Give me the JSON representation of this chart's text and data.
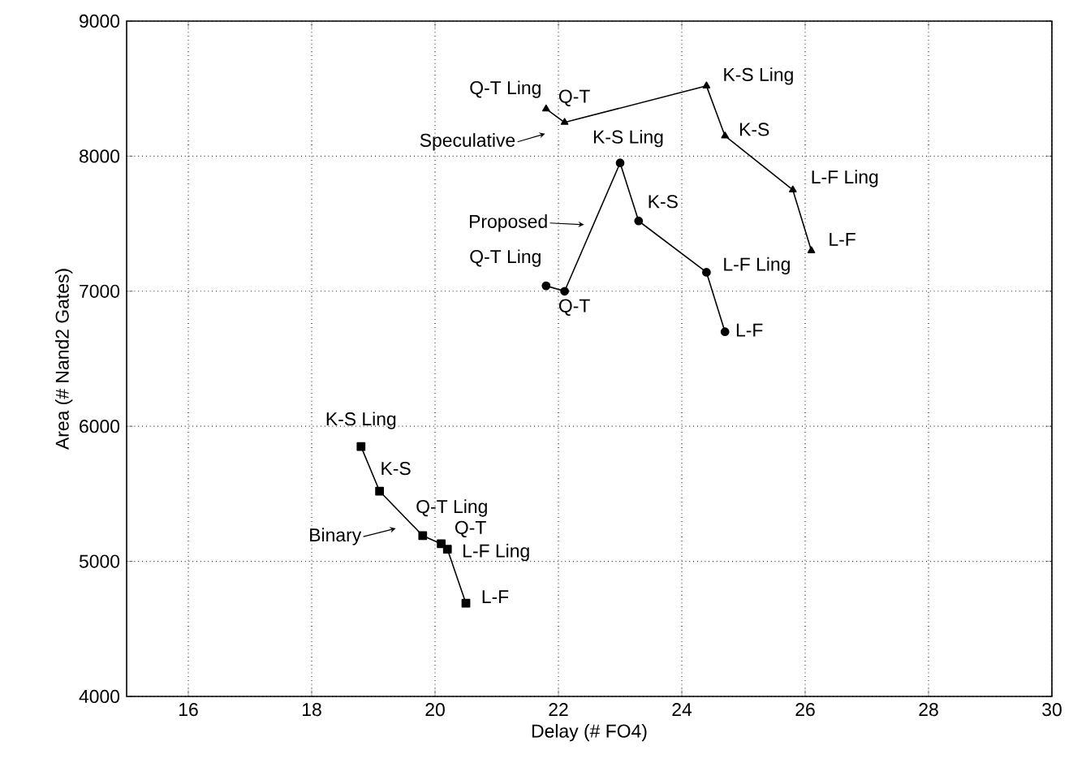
{
  "chart_data": {
    "type": "line",
    "xlabel": "Delay (# FO4)",
    "ylabel": "Area (# Nand2 Gates)",
    "xlim": [
      15,
      30
    ],
    "ylim": [
      4000,
      9000
    ],
    "xticks": [
      16,
      18,
      20,
      22,
      24,
      26,
      28,
      30
    ],
    "yticks": [
      4000,
      5000,
      6000,
      7000,
      8000,
      9000
    ],
    "grid": true,
    "line_style": "solid",
    "legend": "left",
    "series": [
      {
        "name": "Binary",
        "color": "#000000",
        "marker": "square",
        "x": [
          18.8,
          19.1,
          19.8,
          20.1,
          20.2,
          20.5
        ],
        "values": [
          5850,
          5520,
          5190,
          5130,
          5090,
          4690
        ]
      },
      {
        "name": "Proposed",
        "color": "#000000",
        "marker": "circle",
        "x": [
          21.8,
          22.1,
          23.0,
          23.3,
          24.4,
          24.7
        ],
        "values": [
          7040,
          7000,
          7950,
          7520,
          7140,
          6700
        ]
      },
      {
        "name": "Speculative",
        "color": "#000000",
        "marker": "triangle",
        "x": [
          21.8,
          22.1,
          24.4,
          24.7,
          25.8,
          26.1
        ],
        "values": [
          8350,
          8250,
          8520,
          8150,
          7750,
          7300
        ]
      }
    ],
    "annotations": [
      {
        "text": "K-S Ling",
        "x": 18.8,
        "y": 5850
      },
      {
        "text": "K-S",
        "x": 19.1,
        "y": 5520
      },
      {
        "text": "Q-T Ling",
        "x": 19.8,
        "y": 5190
      },
      {
        "text": "Q-T",
        "x": 20.1,
        "y": 5130
      },
      {
        "text": "L-F Ling",
        "x": 20.2,
        "y": 5090
      },
      {
        "text": "L-F",
        "x": 20.5,
        "y": 4690
      },
      {
        "text": "Q-T Ling",
        "x": 21.8,
        "y": 7040
      },
      {
        "text": "Q-T",
        "x": 22.1,
        "y": 7000
      },
      {
        "text": "K-S Ling",
        "x": 23.0,
        "y": 7950
      },
      {
        "text": "K-S",
        "x": 23.3,
        "y": 7520
      },
      {
        "text": "L-F Ling",
        "x": 24.4,
        "y": 7140
      },
      {
        "text": "L-F",
        "x": 24.7,
        "y": 6700
      },
      {
        "text": "Q-T Ling",
        "x": 21.8,
        "y": 8350
      },
      {
        "text": "Q-T",
        "x": 22.1,
        "y": 8250
      },
      {
        "text": "K-S Ling",
        "x": 24.4,
        "y": 8520
      },
      {
        "text": "K-S",
        "x": 24.7,
        "y": 8150
      },
      {
        "text": "L-F Ling",
        "x": 25.8,
        "y": 7750
      },
      {
        "text": "L-F",
        "x": 26.1,
        "y": 7300
      }
    ]
  }
}
